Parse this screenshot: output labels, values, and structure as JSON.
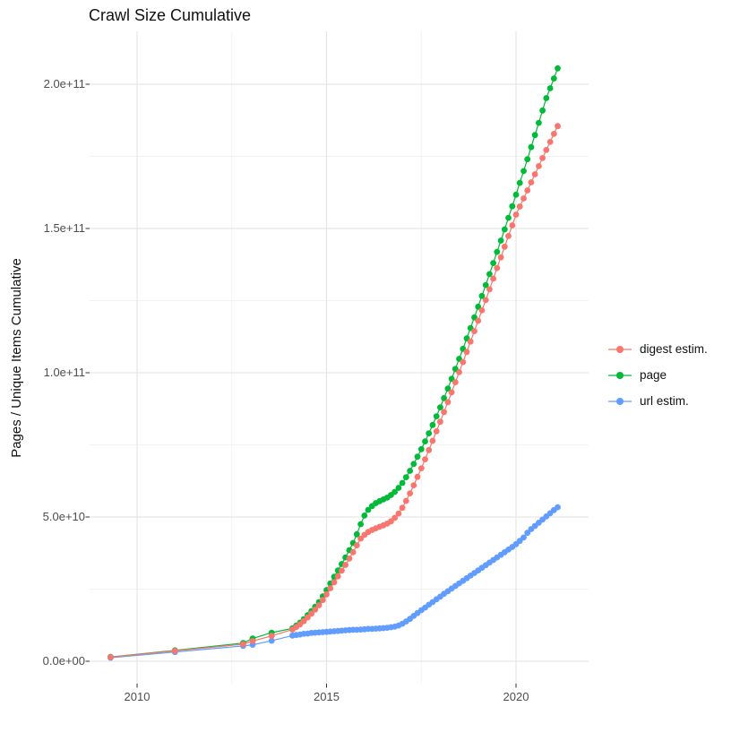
{
  "chart": {
    "title": "Crawl Size Cumulative",
    "ylabel": "Pages / Unique Items Cumulative"
  },
  "chart_data": {
    "type": "line",
    "title": "Crawl Size Cumulative",
    "xlabel": "",
    "ylabel": "Pages / Unique Items Cumulative",
    "value_unit": "1e9 (billions of pages / unique items)",
    "xlim": [
      2008.7,
      2021.9
    ],
    "ylim_e9": [
      0,
      218
    ],
    "grid": "on",
    "legend_position": "right",
    "axes": {
      "x": {
        "ticks": [
          {
            "value": 2010,
            "label": "2010"
          },
          {
            "value": 2015,
            "label": "2015"
          },
          {
            "value": 2020,
            "label": "2020"
          }
        ],
        "minor": [
          2012.5,
          2017.5
        ]
      },
      "y": {
        "ticks": [
          {
            "value": 0,
            "label": "0.0e+00"
          },
          {
            "value": 50,
            "label": "5.0e+10"
          },
          {
            "value": 100,
            "label": "1.0e+11"
          },
          {
            "value": 150,
            "label": "1.5e+11"
          },
          {
            "value": 200,
            "label": "2.0e+11"
          }
        ],
        "minor": [
          25,
          75,
          125,
          175
        ]
      }
    },
    "series": [
      {
        "name": "digest estim.",
        "color": "#F8766D",
        "points": [
          [
            2009.3,
            1.4
          ],
          [
            2011.0,
            3.6
          ],
          [
            2012.8,
            5.9
          ],
          [
            2013.05,
            7.0
          ],
          [
            2013.55,
            8.8
          ],
          [
            2014.1,
            11.0
          ],
          [
            2014.2,
            11.9
          ],
          [
            2014.3,
            12.8
          ],
          [
            2014.4,
            13.9
          ],
          [
            2014.5,
            15.2
          ],
          [
            2014.6,
            16.5
          ],
          [
            2014.7,
            17.9
          ],
          [
            2014.8,
            19.4
          ],
          [
            2014.9,
            21.2
          ],
          [
            2015.0,
            23.2
          ],
          [
            2015.1,
            25.3
          ],
          [
            2015.2,
            27.4
          ],
          [
            2015.3,
            29.4
          ],
          [
            2015.4,
            31.4
          ],
          [
            2015.5,
            33.4
          ],
          [
            2015.6,
            35.6
          ],
          [
            2015.7,
            37.8
          ],
          [
            2015.8,
            40.2
          ],
          [
            2015.9,
            42.5
          ],
          [
            2016.0,
            43.8
          ],
          [
            2016.1,
            44.8
          ],
          [
            2016.2,
            45.5
          ],
          [
            2016.3,
            46.1
          ],
          [
            2016.4,
            46.6
          ],
          [
            2016.5,
            47.1
          ],
          [
            2016.6,
            47.7
          ],
          [
            2016.7,
            48.5
          ],
          [
            2016.8,
            49.7
          ],
          [
            2016.9,
            51.2
          ],
          [
            2017.0,
            53.2
          ],
          [
            2017.1,
            55.6
          ],
          [
            2017.2,
            58.2
          ],
          [
            2017.3,
            61.0
          ],
          [
            2017.4,
            63.9
          ],
          [
            2017.5,
            66.9
          ],
          [
            2017.6,
            70.0
          ],
          [
            2017.7,
            73.2
          ],
          [
            2017.8,
            76.4
          ],
          [
            2017.9,
            79.7
          ],
          [
            2018.0,
            83.0
          ],
          [
            2018.1,
            86.4
          ],
          [
            2018.2,
            89.8
          ],
          [
            2018.3,
            93.2
          ],
          [
            2018.4,
            96.7
          ],
          [
            2018.5,
            100.2
          ],
          [
            2018.6,
            103.7
          ],
          [
            2018.7,
            107.2
          ],
          [
            2018.8,
            110.8
          ],
          [
            2018.9,
            114.4
          ],
          [
            2019.0,
            118.0
          ],
          [
            2019.1,
            121.6
          ],
          [
            2019.2,
            125.2
          ],
          [
            2019.3,
            128.9
          ],
          [
            2019.4,
            132.6
          ],
          [
            2019.5,
            136.3
          ],
          [
            2019.6,
            140.0
          ],
          [
            2019.7,
            143.7
          ],
          [
            2019.8,
            147.4
          ],
          [
            2019.9,
            151.1
          ],
          [
            2020.0,
            154.8
          ],
          [
            2020.1,
            157.6
          ],
          [
            2020.2,
            160.4
          ],
          [
            2020.3,
            163.2
          ],
          [
            2020.4,
            166.0
          ],
          [
            2020.5,
            168.8
          ],
          [
            2020.6,
            171.6
          ],
          [
            2020.7,
            174.4
          ],
          [
            2020.8,
            177.2
          ],
          [
            2020.9,
            180.0
          ],
          [
            2021.0,
            182.8
          ],
          [
            2021.1,
            185.5
          ]
        ]
      },
      {
        "name": "page",
        "color": "#00BA38",
        "points": [
          [
            2009.3,
            1.5
          ],
          [
            2011.0,
            3.8
          ],
          [
            2012.8,
            6.3
          ],
          [
            2013.05,
            7.9
          ],
          [
            2013.55,
            9.9
          ],
          [
            2014.1,
            11.4
          ],
          [
            2014.2,
            12.4
          ],
          [
            2014.3,
            13.4
          ],
          [
            2014.4,
            14.6
          ],
          [
            2014.5,
            16.0
          ],
          [
            2014.6,
            17.4
          ],
          [
            2014.7,
            18.9
          ],
          [
            2014.8,
            20.5
          ],
          [
            2014.9,
            22.5
          ],
          [
            2015.0,
            24.7
          ],
          [
            2015.1,
            27.0
          ],
          [
            2015.2,
            29.3
          ],
          [
            2015.3,
            31.5
          ],
          [
            2015.4,
            33.7
          ],
          [
            2015.5,
            36.0
          ],
          [
            2015.6,
            38.5
          ],
          [
            2015.7,
            41.0
          ],
          [
            2015.8,
            44.0
          ],
          [
            2015.9,
            47.5
          ],
          [
            2016.0,
            50.5
          ],
          [
            2016.1,
            52.5
          ],
          [
            2016.2,
            53.8
          ],
          [
            2016.3,
            54.8
          ],
          [
            2016.4,
            55.5
          ],
          [
            2016.5,
            56.1
          ],
          [
            2016.6,
            56.7
          ],
          [
            2016.7,
            57.6
          ],
          [
            2016.8,
            58.7
          ],
          [
            2016.9,
            60.1
          ],
          [
            2017.0,
            61.8
          ],
          [
            2017.1,
            63.8
          ],
          [
            2017.2,
            66.0
          ],
          [
            2017.3,
            68.4
          ],
          [
            2017.4,
            70.9
          ],
          [
            2017.5,
            73.5
          ],
          [
            2017.6,
            76.2
          ],
          [
            2017.7,
            79.0
          ],
          [
            2017.8,
            81.9
          ],
          [
            2017.9,
            84.9
          ],
          [
            2018.0,
            88.0
          ],
          [
            2018.1,
            91.2
          ],
          [
            2018.2,
            94.5
          ],
          [
            2018.3,
            97.9
          ],
          [
            2018.4,
            101.3
          ],
          [
            2018.5,
            104.8
          ],
          [
            2018.6,
            108.3
          ],
          [
            2018.7,
            111.9
          ],
          [
            2018.8,
            115.5
          ],
          [
            2018.9,
            119.2
          ],
          [
            2019.0,
            122.9
          ],
          [
            2019.1,
            126.6
          ],
          [
            2019.2,
            130.4
          ],
          [
            2019.3,
            134.2
          ],
          [
            2019.4,
            138.0
          ],
          [
            2019.5,
            141.9
          ],
          [
            2019.6,
            145.8
          ],
          [
            2019.7,
            149.7
          ],
          [
            2019.8,
            153.7
          ],
          [
            2019.9,
            157.7
          ],
          [
            2020.0,
            161.7
          ],
          [
            2020.1,
            165.8
          ],
          [
            2020.2,
            169.9
          ],
          [
            2020.3,
            174.0
          ],
          [
            2020.4,
            178.2
          ],
          [
            2020.5,
            182.4
          ],
          [
            2020.6,
            186.6
          ],
          [
            2020.7,
            190.9
          ],
          [
            2020.8,
            195.2
          ],
          [
            2020.9,
            198.6
          ],
          [
            2021.0,
            202.0
          ],
          [
            2021.1,
            205.5
          ]
        ]
      },
      {
        "name": "url estim.",
        "color": "#619CFF",
        "points": [
          [
            2009.3,
            1.2
          ],
          [
            2011.0,
            3.2
          ],
          [
            2012.8,
            5.3
          ],
          [
            2013.05,
            5.7
          ],
          [
            2013.55,
            7.1
          ],
          [
            2014.1,
            8.9
          ],
          [
            2014.2,
            9.1
          ],
          [
            2014.3,
            9.3
          ],
          [
            2014.4,
            9.5
          ],
          [
            2014.5,
            9.6
          ],
          [
            2014.6,
            9.8
          ],
          [
            2014.7,
            9.9
          ],
          [
            2014.8,
            10.0
          ],
          [
            2014.9,
            10.1
          ],
          [
            2015.0,
            10.2
          ],
          [
            2015.1,
            10.3
          ],
          [
            2015.2,
            10.4
          ],
          [
            2015.3,
            10.5
          ],
          [
            2015.4,
            10.6
          ],
          [
            2015.5,
            10.7
          ],
          [
            2015.6,
            10.8
          ],
          [
            2015.7,
            10.9
          ],
          [
            2015.8,
            10.9
          ],
          [
            2015.9,
            11.0
          ],
          [
            2016.0,
            11.1
          ],
          [
            2016.1,
            11.2
          ],
          [
            2016.2,
            11.2
          ],
          [
            2016.3,
            11.3
          ],
          [
            2016.4,
            11.4
          ],
          [
            2016.5,
            11.5
          ],
          [
            2016.6,
            11.6
          ],
          [
            2016.7,
            11.8
          ],
          [
            2016.8,
            12.0
          ],
          [
            2016.9,
            12.4
          ],
          [
            2017.0,
            13.0
          ],
          [
            2017.1,
            13.8
          ],
          [
            2017.2,
            14.7
          ],
          [
            2017.3,
            15.7
          ],
          [
            2017.4,
            16.7
          ],
          [
            2017.5,
            17.7
          ],
          [
            2017.6,
            18.6
          ],
          [
            2017.7,
            19.6
          ],
          [
            2017.8,
            20.5
          ],
          [
            2017.9,
            21.5
          ],
          [
            2018.0,
            22.4
          ],
          [
            2018.1,
            23.4
          ],
          [
            2018.2,
            24.3
          ],
          [
            2018.3,
            25.2
          ],
          [
            2018.4,
            26.1
          ],
          [
            2018.5,
            27.0
          ],
          [
            2018.6,
            27.9
          ],
          [
            2018.7,
            28.8
          ],
          [
            2018.8,
            29.7
          ],
          [
            2018.9,
            30.6
          ],
          [
            2019.0,
            31.5
          ],
          [
            2019.1,
            32.4
          ],
          [
            2019.2,
            33.3
          ],
          [
            2019.3,
            34.2
          ],
          [
            2019.4,
            35.1
          ],
          [
            2019.5,
            36.0
          ],
          [
            2019.6,
            36.9
          ],
          [
            2019.7,
            37.8
          ],
          [
            2019.8,
            38.7
          ],
          [
            2019.9,
            39.6
          ],
          [
            2020.0,
            40.6
          ],
          [
            2020.1,
            41.7
          ],
          [
            2020.2,
            42.9
          ],
          [
            2020.3,
            44.5
          ],
          [
            2020.4,
            45.8
          ],
          [
            2020.5,
            46.9
          ],
          [
            2020.6,
            48.0
          ],
          [
            2020.7,
            49.1
          ],
          [
            2020.8,
            50.2
          ],
          [
            2020.9,
            51.3
          ],
          [
            2021.0,
            52.4
          ],
          [
            2021.1,
            53.4
          ]
        ]
      }
    ]
  }
}
